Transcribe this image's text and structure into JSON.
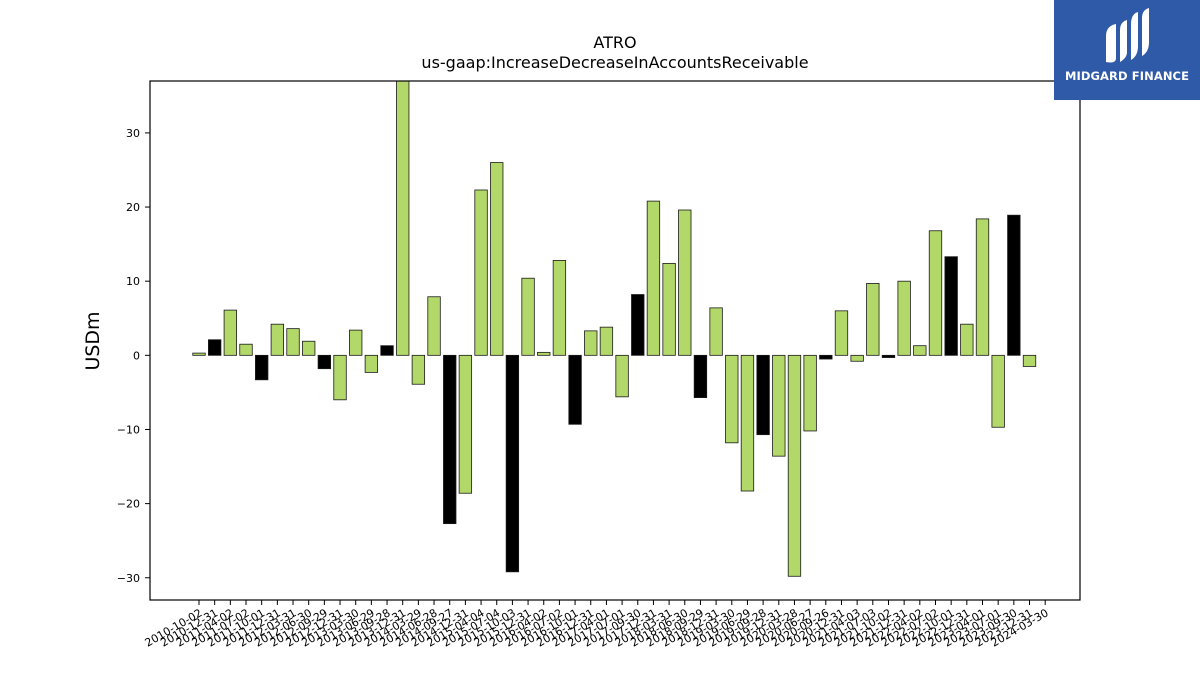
{
  "brand": {
    "name": "MIDGARD FINANCE",
    "bg_color": "#2f5aa8"
  },
  "chart_data": {
    "type": "bar",
    "title": "ATRO",
    "subtitle": "us-gaap:IncreaseDecreaseInAccountsReceivable",
    "ylabel": "USDm",
    "xlabel": "",
    "ylim": [
      -33,
      37
    ],
    "yticks": [
      -30,
      -20,
      -10,
      0,
      10,
      20,
      30
    ],
    "grid": false,
    "categories": [
      "2010-10-02",
      "2010-12-31",
      "2011-04-02",
      "2011-07-02",
      "2011-10-01",
      "2011-12-31",
      "2012-03-31",
      "2012-06-30",
      "2012-09-29",
      "2012-12-31",
      "2013-03-30",
      "2013-06-29",
      "2013-09-28",
      "2013-12-31",
      "2014-03-29",
      "2014-06-28",
      "2014-09-27",
      "2014-12-31",
      "2015-04-04",
      "2015-07-04",
      "2015-10-03",
      "2015-12-31",
      "2016-04-02",
      "2016-07-02",
      "2016-10-01",
      "2016-12-31",
      "2017-04-01",
      "2017-07-01",
      "2017-09-30",
      "2017-12-31",
      "2018-03-31",
      "2018-06-30",
      "2018-09-29",
      "2018-12-31",
      "2019-03-30",
      "2019-06-29",
      "2019-09-28",
      "2019-12-31",
      "2020-03-28",
      "2020-06-27",
      "2020-09-26",
      "2020-12-31",
      "2021-04-03",
      "2021-07-03",
      "2021-10-02",
      "2021-12-31",
      "2022-04-02",
      "2022-07-02",
      "2022-10-01",
      "2022-12-31",
      "2023-04-01",
      "2023-07-01",
      "2023-09-30",
      "2023-12-31",
      "2024-03-30"
    ],
    "values": [
      0.3,
      2.1,
      6.1,
      1.5,
      -3.3,
      4.2,
      3.6,
      1.9,
      -1.8,
      -6.0,
      3.4,
      -2.3,
      1.3,
      37.0,
      -3.9,
      7.9,
      -22.7,
      -18.6,
      22.3,
      26.0,
      -29.2,
      10.4,
      0.4,
      12.8,
      -9.3,
      3.3,
      3.8,
      -5.6,
      8.2,
      20.8,
      12.4,
      19.6,
      -5.7,
      6.4,
      -11.8,
      -18.3,
      -10.7,
      -13.6,
      -29.8,
      -10.2,
      -0.5,
      6.0,
      -0.8,
      9.7,
      -0.3,
      10.0,
      1.3,
      16.8,
      13.3,
      4.2,
      18.4,
      -9.7,
      18.9,
      -1.5,
      0.0
    ],
    "highlight_categories": [
      "2010-12-31",
      "2011-10-01",
      "2012-09-29",
      "2013-09-28",
      "2014-09-27",
      "2015-10-03",
      "2016-10-01",
      "2017-09-30",
      "2018-09-29",
      "2019-09-28",
      "2020-09-26",
      "2021-10-02",
      "2022-10-01",
      "2023-09-30"
    ],
    "colors": {
      "bar": "#b3d86a",
      "highlight": "#000000",
      "edge": "#1a1a1a"
    }
  }
}
